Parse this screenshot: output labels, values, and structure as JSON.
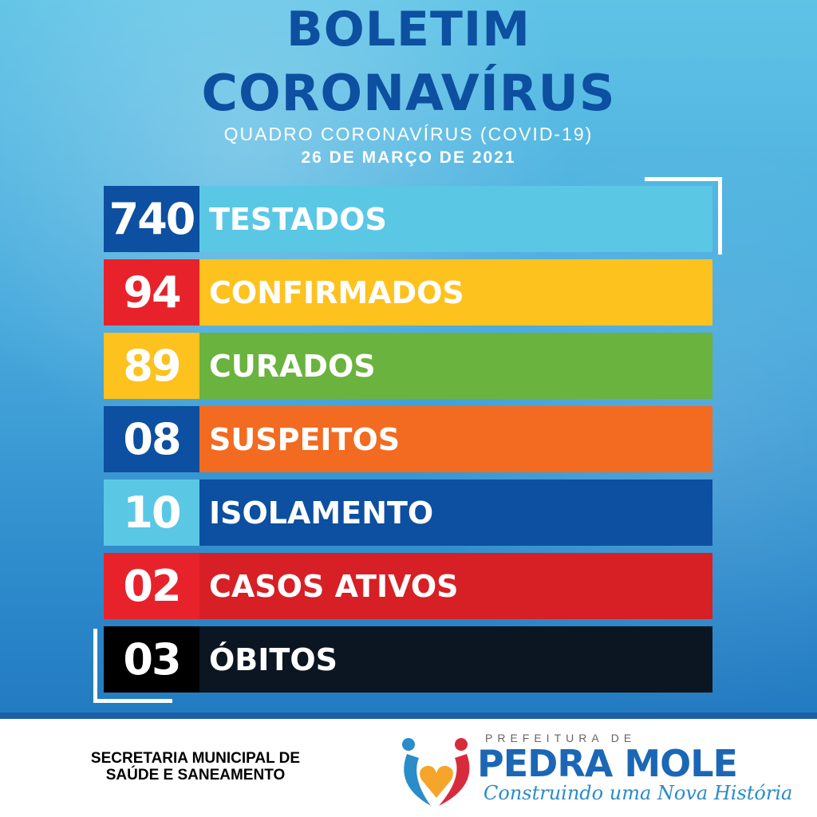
{
  "header": {
    "title_line1": "BOLETIM",
    "title_line2": "CORONAVÍRUS",
    "subtitle": "QUADRO CORONAVÍRUS (COVID-19)",
    "date": "26 DE MARÇO DE 2021"
  },
  "rows": [
    {
      "value": "740",
      "label": "TESTADOS",
      "num_color": "#0d4fa0",
      "label_color": "#5ac8e5"
    },
    {
      "value": "94",
      "label": "CONFIRMADOS",
      "num_color": "#e8222b",
      "label_color": "#fdc21e"
    },
    {
      "value": "89",
      "label": "CURADOS",
      "num_color": "#fdc21e",
      "label_color": "#6ab33e"
    },
    {
      "value": "08",
      "label": "SUSPEITOS",
      "num_color": "#0d4fa0",
      "label_color": "#f26b21"
    },
    {
      "value": "10",
      "label": "ISOLAMENTO",
      "num_color": "#5ac8e5",
      "label_color": "#0d4fa0"
    },
    {
      "value": "02",
      "label": "CASOS ATIVOS",
      "num_color": "#e8222b",
      "label_color": "#d71f26"
    },
    {
      "value": "03",
      "label": "ÓBITOS",
      "num_color": "#000000",
      "label_color": "#0b1622"
    }
  ],
  "footer": {
    "secretaria_line1": "SECRETARIA MUNICIPAL DE",
    "secretaria_line2": "SAÚDE E SANEAMENTO",
    "logo_prefix": "PREFEITURA DE",
    "logo_name": "PEDRA MOLE",
    "logo_slogan": "Construindo uma Nova História"
  }
}
